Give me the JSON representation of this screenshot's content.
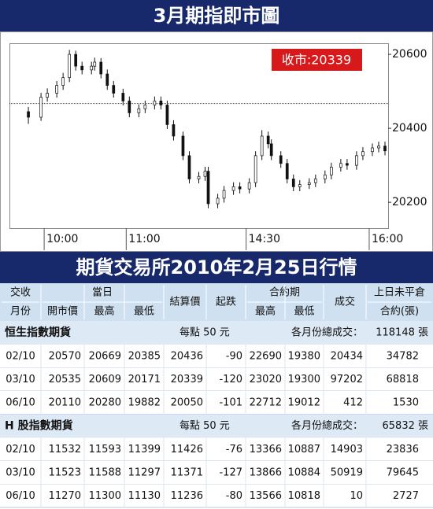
{
  "chart_data": {
    "type": "candlestick",
    "title": "3月期指即市圖",
    "annotation": "收市:20339",
    "xlim": [
      0,
      120
    ],
    "xticks": [
      {
        "value": 11,
        "label": "10:00"
      },
      {
        "value": 37,
        "label": "11:00"
      },
      {
        "value": 75,
        "label": "14:30"
      },
      {
        "value": 114,
        "label": "16:00"
      }
    ],
    "ylim": [
      20130,
      20630
    ],
    "yticks": [
      20200,
      20400,
      20600
    ],
    "reference_line": 20467,
    "x": [
      6,
      10,
      12,
      15,
      17,
      19,
      21,
      23,
      26,
      27,
      29,
      31,
      33,
      36,
      38,
      41,
      43,
      46,
      48,
      50,
      52,
      55,
      57,
      60,
      62,
      63,
      66,
      68,
      71,
      73,
      76,
      78,
      80,
      82,
      83,
      86,
      88,
      90,
      92,
      95,
      97,
      100,
      102,
      105,
      107,
      110,
      112,
      115,
      117,
      119
    ],
    "open": [
      20445,
      20430,
      20484,
      20495,
      20516,
      20537,
      20600,
      20568,
      20558,
      20568,
      20579,
      20547,
      20516,
      20495,
      20474,
      20442,
      20453,
      20463,
      20474,
      20463,
      20410,
      20379,
      20326,
      20263,
      20270,
      20284,
      20196,
      20211,
      20232,
      20242,
      20236,
      20253,
      20326,
      20379,
      20358,
      20326,
      20305,
      20263,
      20242,
      20248,
      20253,
      20263,
      20274,
      20295,
      20305,
      20300,
      20326,
      20337,
      20347,
      20352
    ],
    "high": [
      20458,
      20496,
      20508,
      20528,
      20550,
      20612,
      20610,
      20580,
      20580,
      20591,
      20590,
      20559,
      20528,
      20507,
      20486,
      20465,
      20475,
      20486,
      20486,
      20475,
      20422,
      20391,
      20338,
      20282,
      20296,
      20296,
      20223,
      20244,
      20254,
      20254,
      20265,
      20338,
      20395,
      20391,
      20370,
      20338,
      20317,
      20275,
      20260,
      20265,
      20275,
      20286,
      20307,
      20317,
      20317,
      20338,
      20349,
      20359,
      20364,
      20364
    ],
    "low": [
      20412,
      20420,
      20472,
      20483,
      20504,
      20525,
      20556,
      20546,
      20546,
      20556,
      20535,
      20504,
      20483,
      20462,
      20430,
      20430,
      20441,
      20451,
      20451,
      20398,
      20367,
      20314,
      20251,
      20251,
      20258,
      20184,
      20184,
      20199,
      20220,
      20224,
      20224,
      20241,
      20314,
      20346,
      20314,
      20293,
      20251,
      20230,
      20230,
      20236,
      20241,
      20251,
      20262,
      20283,
      20288,
      20288,
      20314,
      20325,
      20335,
      20327
    ],
    "close": [
      20430,
      20484,
      20495,
      20516,
      20537,
      20600,
      20568,
      20558,
      20568,
      20579,
      20547,
      20516,
      20495,
      20474,
      20442,
      20453,
      20463,
      20474,
      20463,
      20410,
      20379,
      20326,
      20263,
      20270,
      20284,
      20196,
      20211,
      20232,
      20242,
      20236,
      20253,
      20326,
      20379,
      20358,
      20326,
      20305,
      20263,
      20242,
      20248,
      20253,
      20263,
      20274,
      20295,
      20305,
      20300,
      20326,
      20337,
      20347,
      20352,
      20339
    ]
  },
  "table": {
    "title": "期貨交易所2010年2月25日行情",
    "header": {
      "row1": [
        "交收",
        "當日",
        "結算價",
        "起跌",
        "合約期",
        "成交",
        "上日未平倉"
      ],
      "row2": [
        "月份",
        "開市價",
        "最高",
        "最低",
        "最高",
        "最低",
        "合約(張)"
      ]
    },
    "sections": [
      {
        "name": "恒生指數期貨",
        "unit": "每點 50 元",
        "total_label": "各月份總成交：",
        "total": "118148 張",
        "rows": [
          [
            "02/10",
            20570,
            20669,
            20385,
            20436,
            -90,
            22690,
            19380,
            20434,
            34782
          ],
          [
            "03/10",
            20535,
            20609,
            20171,
            20339,
            -120,
            23020,
            19300,
            97202,
            68818
          ],
          [
            "06/10",
            20110,
            20280,
            19882,
            20050,
            -101,
            22712,
            19012,
            412,
            1530
          ]
        ]
      },
      {
        "name": "H 股指數期貨",
        "unit": "每點 50 元",
        "total_label": "各月份總成交：",
        "total": "65832 張",
        "rows": [
          [
            "02/10",
            11532,
            11593,
            11399,
            11426,
            -76,
            13366,
            10887,
            14903,
            23836
          ],
          [
            "03/10",
            11523,
            11588,
            11297,
            11371,
            -127,
            13866,
            10884,
            50919,
            79645
          ],
          [
            "06/10",
            11270,
            11300,
            11130,
            11236,
            -80,
            13566,
            10818,
            10,
            2727
          ]
        ]
      }
    ]
  }
}
